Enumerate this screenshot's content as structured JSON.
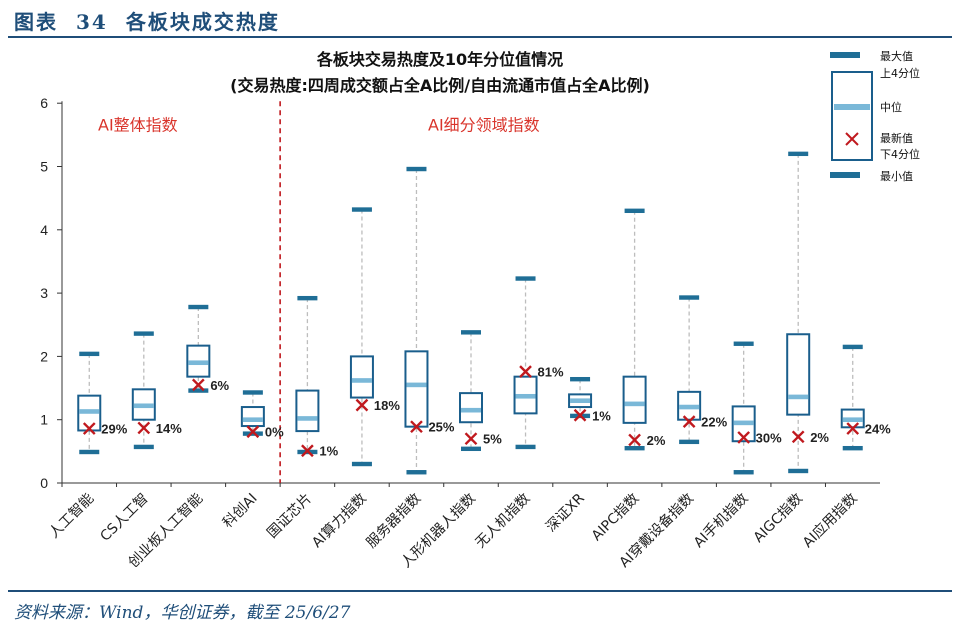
{
  "figure": {
    "label": "图表",
    "number": "34",
    "title": "各板块成交热度",
    "source": "资料来源：Wind，华创证券，截至 25/6/27"
  },
  "colors": {
    "box": "#1a5e8c",
    "cap": "#1f6e96",
    "median": "#7ab8d8",
    "whisker": "#bdbdbd",
    "latest": "#c0191e",
    "divider": "#c0191e",
    "annotation": "#d9342b",
    "title_blue": "#1f4e79"
  },
  "chart_data": {
    "type": "boxplot",
    "title": "各板块交易热度及10年分位值情况",
    "subtitle": "(交易热度:四周成交额占全A比例/自由流通市值占全A比例)",
    "ylim": [
      0,
      6
    ],
    "yticks": [
      "0",
      "1",
      "2",
      "3",
      "4",
      "5",
      "6"
    ],
    "groups": [
      {
        "label": "AI整体指数",
        "category_range": [
          0,
          3
        ]
      },
      {
        "label": "AI细分领域指数",
        "category_range": [
          4,
          14
        ]
      }
    ],
    "legend": [
      "最大值",
      "上4分位",
      "中位",
      "最新值",
      "下4分位",
      "最小值"
    ],
    "categories": [
      "人工智能",
      "CS人工智",
      "创业板人工智能",
      "科创AI",
      "国证芯片",
      "AI算力指数",
      "服务器指数",
      "人形机器人指数",
      "无人机指数",
      "深证XR",
      "AIPC指数",
      "AI穿戴设备指数",
      "AI手机指数",
      "AIGC指数",
      "AI应用指数"
    ],
    "series": [
      {
        "name": "人工智能",
        "min": 0.49,
        "q1": 0.83,
        "median": 1.13,
        "q3": 1.38,
        "max": 2.04,
        "latest": 0.86,
        "percentile": "29%"
      },
      {
        "name": "CS人工智",
        "min": 0.57,
        "q1": 1.0,
        "median": 1.22,
        "q3": 1.48,
        "max": 2.36,
        "latest": 0.87,
        "percentile": "14%"
      },
      {
        "name": "创业板人工智能",
        "min": 1.46,
        "q1": 1.68,
        "median": 1.9,
        "q3": 2.17,
        "max": 2.78,
        "latest": 1.55,
        "percentile": "6%"
      },
      {
        "name": "科创AI",
        "min": 0.78,
        "q1": 0.9,
        "median": 1.0,
        "q3": 1.2,
        "max": 1.43,
        "latest": 0.81,
        "percentile": "0%"
      },
      {
        "name": "国证芯片",
        "min": 0.49,
        "q1": 0.82,
        "median": 1.02,
        "q3": 1.46,
        "max": 2.92,
        "latest": 0.51,
        "percentile": "1%"
      },
      {
        "name": "AI算力指数",
        "min": 0.3,
        "q1": 1.35,
        "median": 1.62,
        "q3": 2.0,
        "max": 4.32,
        "latest": 1.23,
        "percentile": "18%"
      },
      {
        "name": "服务器指数",
        "min": 0.17,
        "q1": 0.89,
        "median": 1.55,
        "q3": 2.08,
        "max": 4.96,
        "latest": 0.89,
        "percentile": "25%"
      },
      {
        "name": "人形机器人指数",
        "min": 0.54,
        "q1": 0.96,
        "median": 1.15,
        "q3": 1.42,
        "max": 2.38,
        "latest": 0.7,
        "percentile": "5%"
      },
      {
        "name": "无人机指数",
        "min": 0.57,
        "q1": 1.1,
        "median": 1.37,
        "q3": 1.68,
        "max": 3.23,
        "latest": 1.76,
        "percentile": "81%"
      },
      {
        "name": "深证XR",
        "min": 1.06,
        "q1": 1.2,
        "median": 1.3,
        "q3": 1.4,
        "max": 1.64,
        "latest": 1.07,
        "percentile": "1%"
      },
      {
        "name": "AIPC指数",
        "min": 0.55,
        "q1": 0.95,
        "median": 1.25,
        "q3": 1.68,
        "max": 4.3,
        "latest": 0.68,
        "percentile": "2%"
      },
      {
        "name": "AI穿戴设备指数",
        "min": 0.65,
        "q1": 1.0,
        "median": 1.2,
        "q3": 1.44,
        "max": 2.93,
        "latest": 0.97,
        "percentile": "22%"
      },
      {
        "name": "AI手机指数",
        "min": 0.17,
        "q1": 0.66,
        "median": 0.95,
        "q3": 1.21,
        "max": 2.2,
        "latest": 0.72,
        "percentile": "30%"
      },
      {
        "name": "AIGC指数",
        "min": 0.19,
        "q1": 1.08,
        "median": 1.36,
        "q3": 2.35,
        "max": 5.2,
        "latest": 0.73,
        "percentile": "2%"
      },
      {
        "name": "AI应用指数",
        "min": 0.55,
        "q1": 0.88,
        "median": 1.0,
        "q3": 1.16,
        "max": 2.15,
        "latest": 0.86,
        "percentile": "24%"
      }
    ]
  }
}
